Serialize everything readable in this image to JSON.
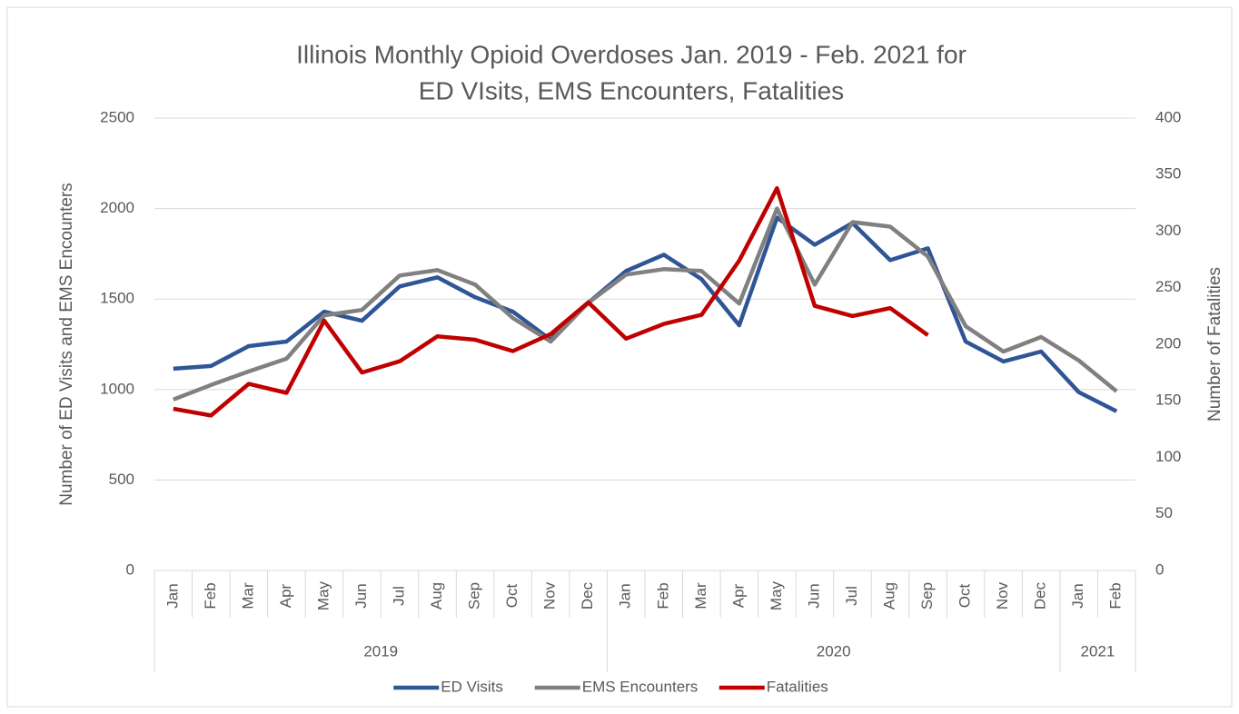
{
  "chart_data": {
    "type": "line",
    "title": [
      "Illinois Monthly Opioid Overdoses Jan. 2019 - Feb. 2021 for",
      "ED VIsits, EMS Encounters, Fatalities"
    ],
    "y_label": "Number of ED Visits and EMS Encounters",
    "y2_label": "Number of Fatalities",
    "category_groups": [
      {
        "label": "2019",
        "categories": [
          "Jan",
          "Feb",
          "Mar",
          "Apr",
          "May",
          "Jun",
          "Jul",
          "Aug",
          "Sep",
          "Oct",
          "Nov",
          "Dec"
        ]
      },
      {
        "label": "2020",
        "categories": [
          "Jan",
          "Feb",
          "Mar",
          "Apr",
          "May",
          "Jun",
          "Jul",
          "Aug",
          "Sep",
          "Oct",
          "Nov",
          "Dec"
        ]
      },
      {
        "label": "2021",
        "categories": [
          "Jan",
          "Feb"
        ]
      }
    ],
    "ylim": [
      0,
      2500
    ],
    "yticks": [
      0,
      500,
      1000,
      1500,
      2000,
      2500
    ],
    "y2lim": [
      0,
      400
    ],
    "y2ticks": [
      0,
      50,
      100,
      150,
      200,
      250,
      300,
      350,
      400
    ],
    "grid": true,
    "legend": "bottom",
    "series": [
      {
        "name": "ED Visits",
        "color": "#2f5597",
        "values": [
          1115,
          1130,
          1240,
          1265,
          1430,
          1380,
          1570,
          1620,
          1510,
          1430,
          1275,
          1480,
          1655,
          1745,
          1610,
          1355,
          1950,
          1800,
          1920,
          1715,
          1780,
          1265,
          1155,
          1210,
          985,
          880
        ]
      },
      {
        "name": "EMS Encounters",
        "color": "#808080",
        "values": [
          945,
          1025,
          1100,
          1170,
          1410,
          1440,
          1630,
          1660,
          1580,
          1395,
          1265,
          1480,
          1635,
          1665,
          1655,
          1475,
          2000,
          1580,
          1925,
          1900,
          1735,
          1350,
          1210,
          1290,
          1160,
          990
        ]
      },
      {
        "name": "Fatalities",
        "color": "#c00000",
        "axis": "y2",
        "values": [
          143,
          137,
          165,
          157,
          221,
          175,
          185,
          207,
          204,
          194,
          209,
          237,
          205,
          218,
          226,
          274,
          338,
          234,
          225,
          232,
          208,
          null,
          null,
          null,
          null,
          null
        ]
      }
    ]
  }
}
